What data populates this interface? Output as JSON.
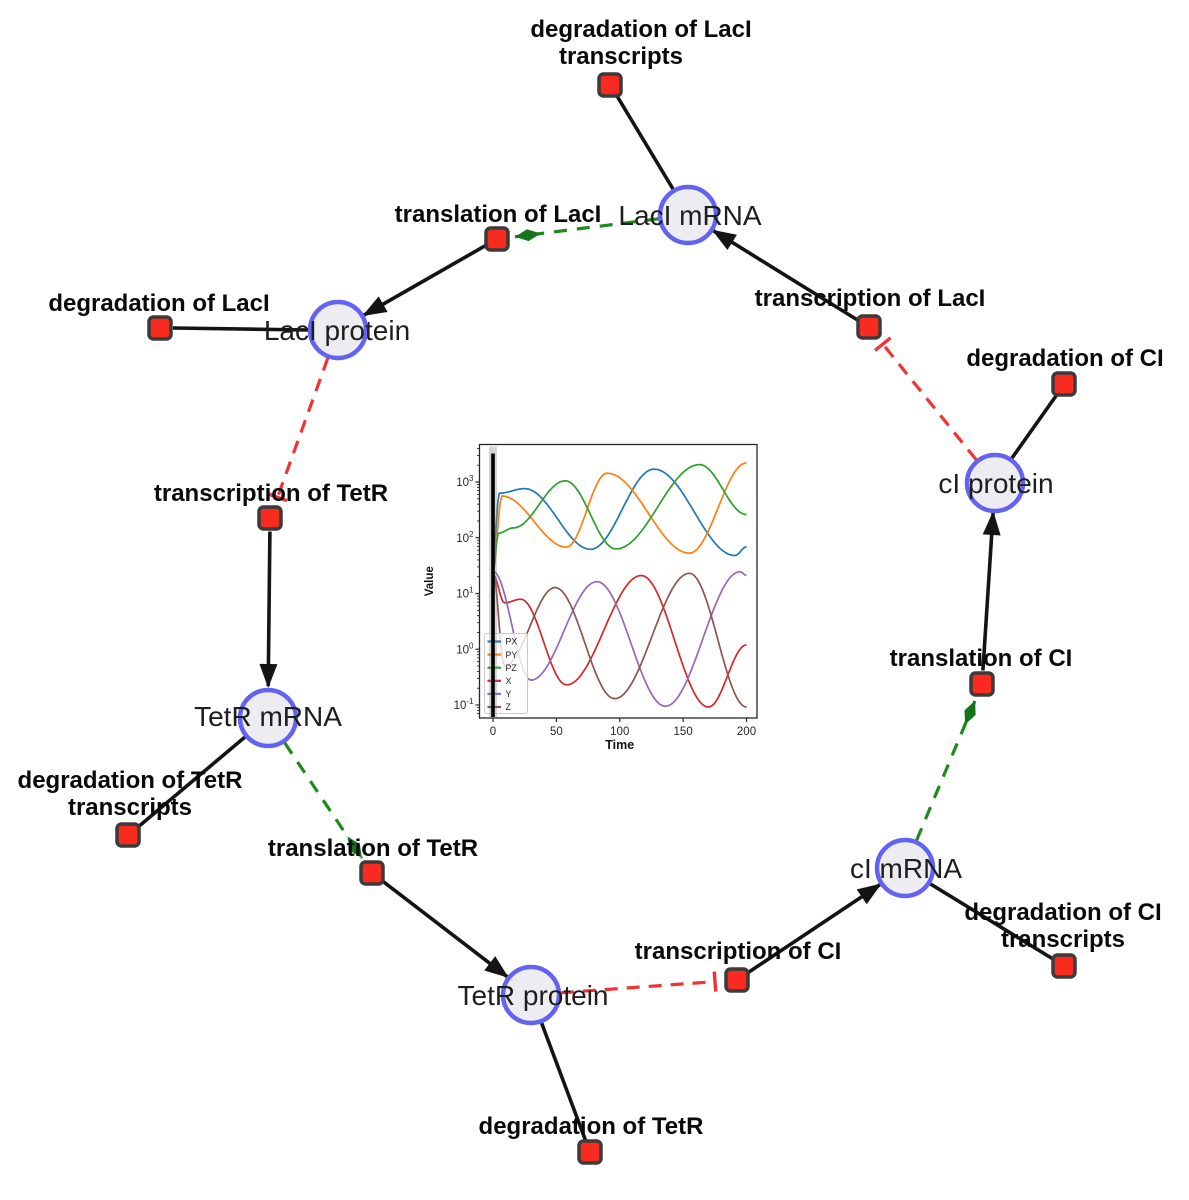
{
  "figure": {
    "background": "#ffffff",
    "species_fill": "#ececf1",
    "species_stroke": "#6363f2",
    "reaction_fill": "#f92b20",
    "reaction_stroke": "#3b3b3b",
    "edge_black": "#141414",
    "edge_activation_green": "#1e8a1e",
    "edge_inhibition_red": "#f23333"
  },
  "network": {
    "species": [
      {
        "label": "LacI mRNA"
      },
      {
        "label": "LacI protein"
      },
      {
        "label": "TetR mRNA"
      },
      {
        "label": "TetR protein"
      },
      {
        "label": "cI mRNA"
      },
      {
        "label": "cI protein"
      }
    ],
    "reactions": [
      {
        "lines": [
          "degradation of LacI",
          "transcripts"
        ]
      },
      {
        "lines": [
          "translation of LacI"
        ]
      },
      {
        "lines": [
          "transcription of LacI"
        ]
      },
      {
        "lines": [
          "degradation of LacI"
        ]
      },
      {
        "lines": [
          "degradation of CI"
        ]
      },
      {
        "lines": [
          "transcription of TetR"
        ]
      },
      {
        "lines": [
          "translation of CI"
        ]
      },
      {
        "lines": [
          "degradation of TetR",
          "transcripts"
        ]
      },
      {
        "lines": [
          "translation of TetR"
        ]
      },
      {
        "lines": [
          "transcription of CI"
        ]
      },
      {
        "lines": [
          "degradation of CI",
          "transcripts"
        ]
      },
      {
        "lines": [
          "degradation of TetR"
        ]
      }
    ]
  },
  "chart_data": {
    "type": "line",
    "title": "",
    "xlabel": "Time",
    "ylabel": "Value",
    "x_ticks": [
      0,
      50,
      100,
      150,
      200
    ],
    "y_tick_exponents": [
      -1,
      0,
      1,
      2,
      3
    ],
    "xlim": [
      -11,
      211
    ],
    "yscale": "log",
    "ylim": [
      0.055,
      4500
    ],
    "grid": false,
    "legend_position": "lower left",
    "t0_marker_line": true,
    "series": [
      {
        "name": "PX",
        "color": "#1f77b4",
        "points": [
          [
            0,
            50
          ],
          [
            5,
            630
          ],
          [
            25,
            760
          ],
          [
            77,
            62
          ],
          [
            127,
            1700
          ],
          [
            191,
            48
          ],
          [
            200,
            69
          ]
        ]
      },
      {
        "name": "PY",
        "color": "#ff7f0e",
        "points": [
          [
            0,
            28
          ],
          [
            7,
            560
          ],
          [
            58,
            68
          ],
          [
            90,
            1440
          ],
          [
            155,
            53
          ],
          [
            200,
            2200
          ]
        ]
      },
      {
        "name": "PZ",
        "color": "#2ca02c",
        "points": [
          [
            0,
            22
          ],
          [
            4,
            120
          ],
          [
            16,
            150
          ],
          [
            57,
            1050
          ],
          [
            97,
            63
          ],
          [
            163,
            2050
          ],
          [
            200,
            260
          ]
        ]
      },
      {
        "name": "X",
        "color": "#d62728",
        "points": [
          [
            0,
            22
          ],
          [
            9,
            6.8
          ],
          [
            22,
            7.9
          ],
          [
            58,
            0.23
          ],
          [
            117,
            21
          ],
          [
            170,
            0.092
          ],
          [
            200,
            1.2
          ]
        ]
      },
      {
        "name": "Y",
        "color": "#9467bd",
        "points": [
          [
            0,
            25
          ],
          [
            30,
            0.28
          ],
          [
            82,
            16.3
          ],
          [
            136,
            0.095
          ],
          [
            195,
            24.6
          ],
          [
            200,
            21
          ]
        ]
      },
      {
        "name": "Z",
        "color": "#8c564b",
        "points": [
          [
            0,
            25
          ],
          [
            9,
            0.5
          ],
          [
            49,
            12.8
          ],
          [
            96,
            0.13
          ],
          [
            155,
            23
          ],
          [
            200,
            0.092
          ]
        ]
      }
    ]
  }
}
